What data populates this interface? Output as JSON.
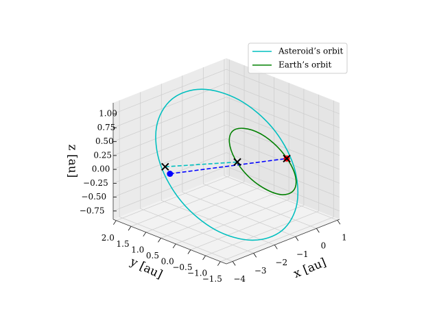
{
  "chart_data": {
    "type": "line3d",
    "xlabel": "x [au]",
    "ylabel": "y [au]",
    "zlabel": "z [au]",
    "xlim": [
      -4.3,
      1.1
    ],
    "ylim": [
      -1.7,
      2.1
    ],
    "zlim": [
      -0.9,
      1.2
    ],
    "xticks": [
      {
        "value": -4,
        "label": "−4"
      },
      {
        "value": -3,
        "label": "−3"
      },
      {
        "value": -2,
        "label": "−2"
      },
      {
        "value": -1,
        "label": "−1"
      },
      0,
      1
    ],
    "yticks": [
      {
        "value": -1.5,
        "label": "−1.5"
      },
      {
        "value": -1,
        "label": "−1.0"
      },
      {
        "value": -0.5,
        "label": "−0.5"
      },
      {
        "value": 0,
        "label": "0.0"
      },
      {
        "value": 0.5,
        "label": "0.5"
      },
      {
        "value": 1,
        "label": "1.0"
      },
      {
        "value": 1.5,
        "label": "1.5"
      },
      {
        "value": 2,
        "label": "2.0"
      }
    ],
    "zticks": [
      {
        "value": -0.75,
        "label": "−0.75"
      },
      {
        "value": -0.5,
        "label": "−0.50"
      },
      {
        "value": -0.25,
        "label": "−0.25"
      },
      {
        "value": 0,
        "label": "0.00"
      },
      {
        "value": 0.25,
        "label": "0.25"
      },
      {
        "value": 0.5,
        "label": "0.50"
      },
      {
        "value": 0.75,
        "label": "0.75"
      },
      {
        "value": 1,
        "label": "1.00"
      }
    ],
    "grid": true,
    "legend": "upper right",
    "series": [
      {
        "name": "Asteroid’s orbit",
        "color": "#00bfbf",
        "x": [
          -1.12,
          0.45,
          1.42,
          1.52,
          0.73,
          -0.75,
          -2.5,
          -3.01,
          -3.52,
          -3.62,
          -3.17,
          -2.42,
          -1.12
        ],
        "y": [
          -1.33,
          -0.73,
          0.07,
          0.85,
          1.42,
          1.61,
          1.39,
          1.55,
          1.07,
          0.28,
          -0.53,
          -1.24,
          -1.33
        ],
        "z": [
          -0.85,
          -0.72,
          -0.35,
          0.15,
          0.65,
          1.02,
          1.15,
          0.7,
          0.2,
          -0.3,
          -0.7,
          -0.85,
          -0.85
        ]
      },
      {
        "name": "Earth’s orbit",
        "color": "#008000",
        "x": [
          1.29,
          1.44,
          1.17,
          0.55,
          -0.27,
          -1.05,
          -1.59,
          -1.74,
          -1.47,
          -0.85,
          -0.04,
          0.74,
          1.29
        ],
        "y": [
          0,
          0,
          0,
          0,
          0,
          0,
          0,
          0,
          0,
          0,
          0,
          0,
          0
        ],
        "z": [
          -0.78,
          -0.6,
          -0.27,
          0.13,
          0.49,
          0.7,
          0.73,
          0.55,
          0.21,
          -0.19,
          -0.54,
          -0.76,
          -0.78
        ]
      }
    ],
    "segments": [
      {
        "color": "#00bfbf",
        "style": "dashed",
        "x": [
          -2.9,
          -0.89
        ],
        "y": [
          1.34,
          0.33
        ],
        "z": [
          0,
          0
        ]
      },
      {
        "color": "#0000ff",
        "style": "dashed",
        "x": [
          -3.21,
          0.5
        ],
        "y": [
          0.96,
          -0.35
        ],
        "z": [
          0,
          0
        ]
      }
    ],
    "markers": [
      {
        "marker": "o",
        "color": "#0000ff",
        "x": -3.21,
        "y": 0.96,
        "z": 0
      },
      {
        "marker": "o",
        "color": "#ff0000",
        "x": 0.5,
        "y": -0.35,
        "z": 0
      },
      {
        "marker": "x",
        "color": "#000000",
        "x": -2.9,
        "y": 1.34,
        "z": 0
      },
      {
        "marker": "x",
        "color": "#000000",
        "x": -0.89,
        "y": 0.33,
        "z": 0
      },
      {
        "marker": "x",
        "color": "#000000",
        "x": 0.5,
        "y": -0.35,
        "z": 0
      }
    ]
  }
}
